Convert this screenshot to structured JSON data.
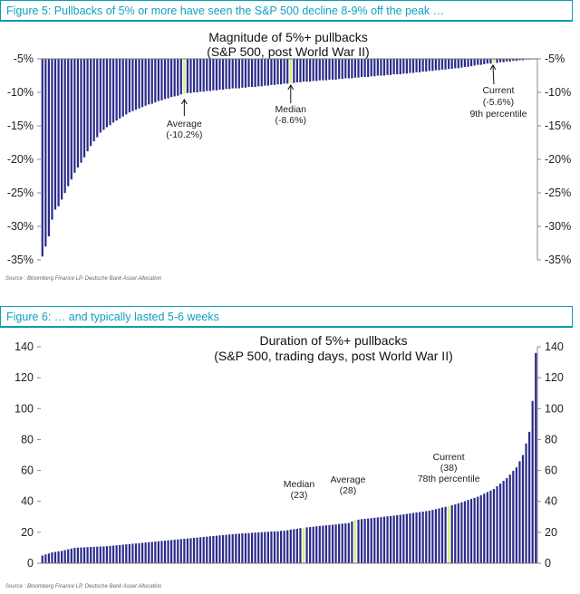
{
  "figures": [
    {
      "header": "Figure 5: Pullbacks of 5% or more have seen the S&P 500 decline 8-9% off the peak …",
      "source": "Source : Bloomberg Finance LP, Deutsche Bank Asset Allocation"
    },
    {
      "header": "Figure 6: … and typically lasted 5-6 weeks",
      "source": "Source : Bloomberg Finance LP, Deutsche Bank Asset Allocation"
    }
  ],
  "colors": {
    "bar": "#2b2b8c",
    "highlight": "#d8ef7a",
    "header": "#11a0bf"
  },
  "chart_data": [
    {
      "type": "bar",
      "title": "Magnitude of 5%+ pullbacks",
      "subtitle": "(S&P 500, post World War II)",
      "ylim": [
        -35,
        -5
      ],
      "y_ticks": [
        -5,
        -10,
        -15,
        -20,
        -25,
        -30,
        -35
      ],
      "y_tick_labels": [
        "-5%",
        "-10%",
        "-15%",
        "-20%",
        "-25%",
        "-30%",
        "-35%"
      ],
      "n_bars": 154,
      "anchors": [
        [
          0,
          -34.5
        ],
        [
          1,
          -33.0
        ],
        [
          2,
          -31.5
        ],
        [
          3,
          -29.0
        ],
        [
          4,
          -27.5
        ],
        [
          5,
          -27.0
        ],
        [
          6,
          -26.0
        ],
        [
          8,
          -24.0
        ],
        [
          10,
          -22.0
        ],
        [
          12,
          -20.5
        ],
        [
          15,
          -18.0
        ],
        [
          18,
          -16.0
        ],
        [
          22,
          -14.5
        ],
        [
          27,
          -13.0
        ],
        [
          32,
          -12.0
        ],
        [
          38,
          -11.0
        ],
        [
          44,
          -10.2
        ],
        [
          55,
          -9.6
        ],
        [
          70,
          -9.0
        ],
        [
          77,
          -8.6
        ],
        [
          95,
          -7.9
        ],
        [
          115,
          -7.1
        ],
        [
          130,
          -6.3
        ],
        [
          140,
          -5.6
        ],
        [
          147,
          -5.3
        ],
        [
          153,
          -5.0
        ]
      ],
      "annotations": [
        {
          "label": "Average",
          "value": "(-10.2%)",
          "bar_index": 44
        },
        {
          "label": "Median",
          "value": "(-8.6%)",
          "bar_index": 77
        },
        {
          "label": "Current",
          "value": "(-5.6%)",
          "extra": "9th percentile",
          "bar_index": 140
        }
      ]
    },
    {
      "type": "bar",
      "title": "Duration of 5%+ pullbacks",
      "subtitle": "(S&P 500, trading days, post World War II)",
      "ylim": [
        0,
        140
      ],
      "y_ticks": [
        0,
        20,
        40,
        60,
        80,
        100,
        120,
        140
      ],
      "y_tick_labels": [
        "0",
        "20",
        "40",
        "60",
        "80",
        "100",
        "120",
        "140"
      ],
      "n_bars": 154,
      "anchors": [
        [
          0,
          5
        ],
        [
          3,
          7
        ],
        [
          6,
          8
        ],
        [
          10,
          10
        ],
        [
          20,
          11
        ],
        [
          30,
          13
        ],
        [
          45,
          16
        ],
        [
          60,
          19
        ],
        [
          75,
          21
        ],
        [
          81,
          23
        ],
        [
          95,
          26
        ],
        [
          97,
          28
        ],
        [
          110,
          31
        ],
        [
          120,
          34
        ],
        [
          128,
          38
        ],
        [
          135,
          43
        ],
        [
          140,
          48
        ],
        [
          144,
          55
        ],
        [
          147,
          62
        ],
        [
          149,
          70
        ],
        [
          151,
          85
        ],
        [
          152,
          105
        ],
        [
          153,
          136
        ]
      ],
      "annotations": [
        {
          "label": "Median",
          "value": "(23)",
          "bar_index": 81
        },
        {
          "label": "Average",
          "value": "(28)",
          "bar_index": 97
        },
        {
          "label": "Current",
          "value": "(38)",
          "extra": "78th percentile",
          "bar_index": 126
        }
      ]
    }
  ]
}
